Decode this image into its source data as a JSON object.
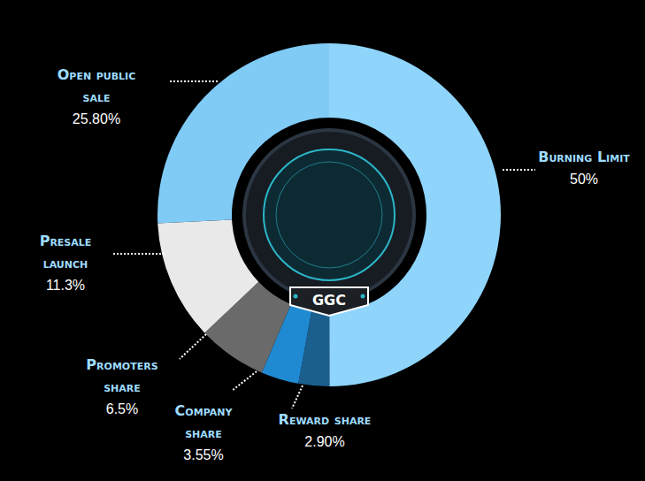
{
  "chart_data": {
    "type": "pie",
    "center_label": "GGC",
    "categories": [
      "Burning Limit",
      "Reward share",
      "Company share",
      "Promoters share",
      "Presale launch",
      "Open public sale"
    ],
    "values": [
      50,
      2.9,
      3.55,
      6.5,
      11.3,
      25.8
    ],
    "value_labels": [
      "50%",
      "2.90%",
      "3.55%",
      "6.5%",
      "11.3%",
      "25.80%"
    ],
    "colors": [
      "#8ed4fb",
      "#1a5f8e",
      "#1f8ad2",
      "#6a6a6a",
      "#e9e9e9",
      "#80cbf6"
    ],
    "data_labels": true
  }
}
